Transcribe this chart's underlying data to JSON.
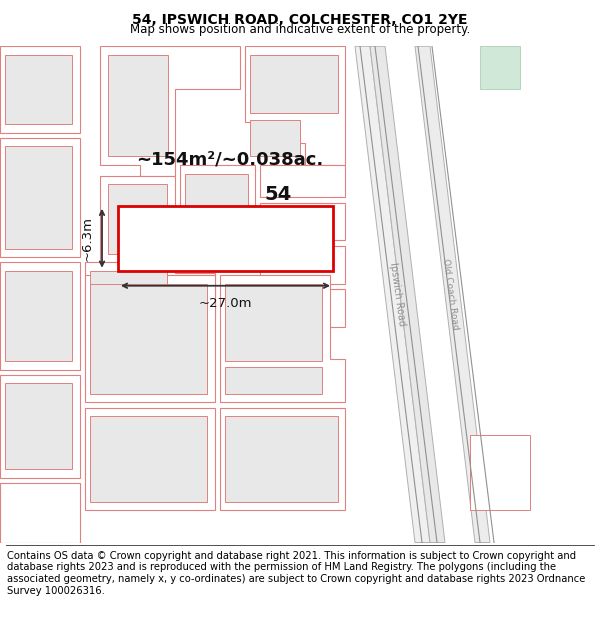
{
  "title": "54, IPSWICH ROAD, COLCHESTER, CO1 2YE",
  "subtitle": "Map shows position and indicative extent of the property.",
  "footer": "Contains OS data © Crown copyright and database right 2021. This information is subject to Crown copyright and database rights 2023 and is reproduced with the permission of HM Land Registry. The polygons (including the associated geometry, namely x, y co-ordinates) are subject to Crown copyright and database rights 2023 Ordnance Survey 100026316.",
  "area_label": "~154m²/~0.038ac.",
  "width_label": "~27.0m",
  "height_label": "~6.3m",
  "plot_number": "54",
  "map_bg": "#ffffff",
  "highlight_color": "#dd0000",
  "plot_fill": "#ffffff",
  "building_fill": "#e8e8e8",
  "building_outline": "#e08080",
  "road_gray": "#c0c0c0",
  "green_area": "#d8ede0",
  "title_fontsize": 10,
  "subtitle_fontsize": 8.5,
  "footer_fontsize": 7.2
}
